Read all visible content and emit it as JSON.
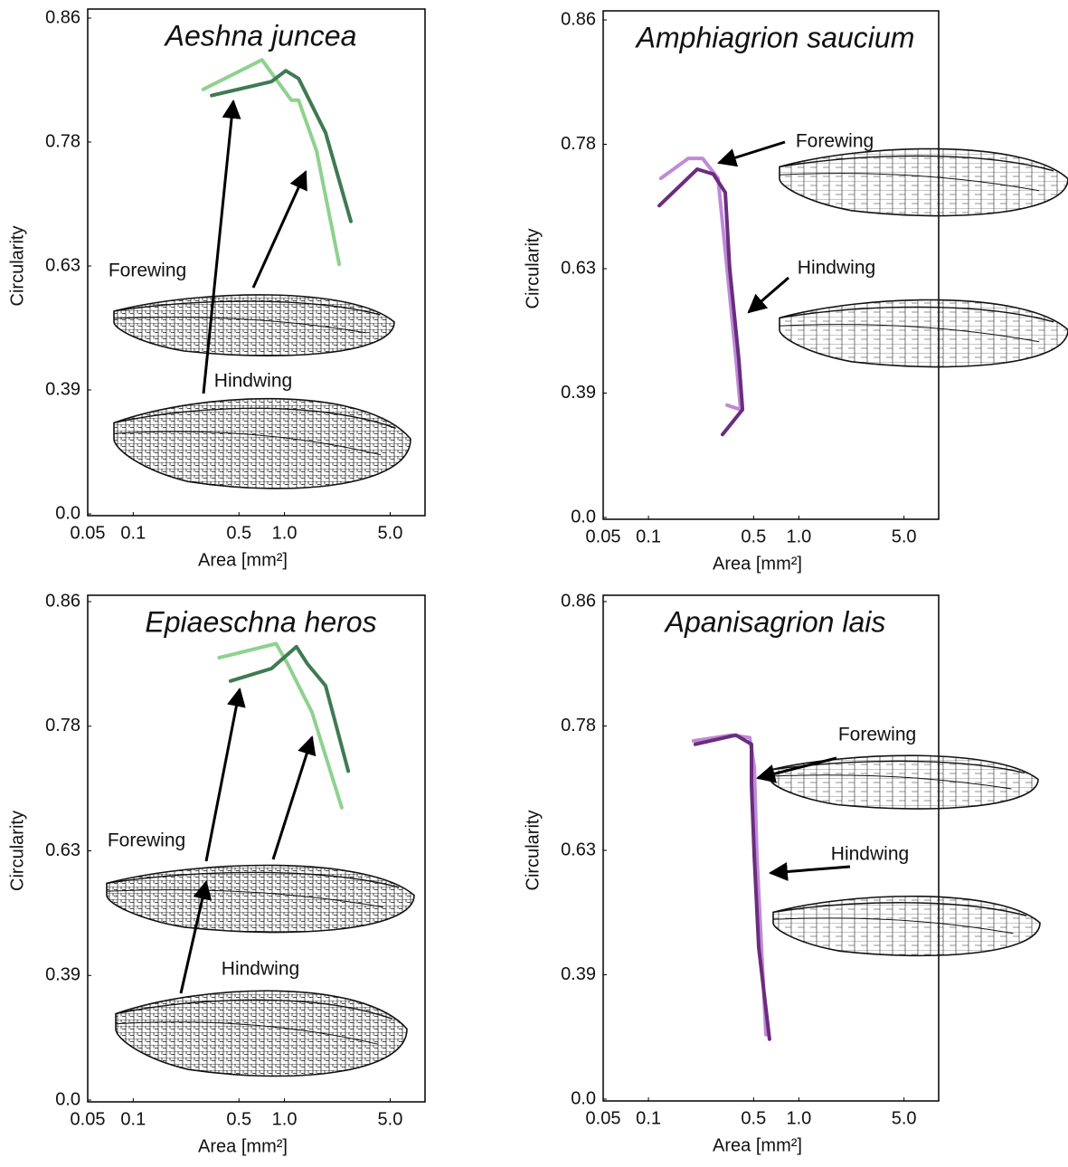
{
  "chart_data": [
    {
      "type": "line",
      "title": "Aeshna juncea",
      "x_label": "Area [mm²]",
      "y_label": "Circularity",
      "x_log": true,
      "xlim": [
        0.05,
        8.5
      ],
      "xticks": [
        0.05,
        0.1,
        0.5,
        {
          "value": 1,
          "label": "1.0"
        },
        {
          "value": 5,
          "label": "5.0"
        }
      ],
      "ylim": [
        0,
        0.86
      ],
      "yticks": [
        {
          "value": 0,
          "label": "0.0"
        },
        0.39,
        0.63,
        0.78,
        0.86
      ],
      "annotations": [
        "Forewing",
        "Hindwing"
      ],
      "series": [
        {
          "color": "#8fd18f",
          "x": [
            0.29,
            0.71,
            1.11,
            1.24,
            1.63,
            2.3
          ],
          "values": [
            0.814,
            0.833,
            0.807,
            0.807,
            0.769,
            0.632
          ]
        },
        {
          "color": "#3f7a52",
          "x": [
            0.33,
            0.82,
            1.02,
            1.24,
            1.87,
            2.75
          ],
          "values": [
            0.81,
            0.819,
            0.826,
            0.821,
            0.786,
            0.684
          ]
        }
      ]
    },
    {
      "type": "line",
      "title": "Amphiagrion saucium",
      "x_label": "Area [mm²]",
      "y_label": "Circularity",
      "x_log": true,
      "xlim": [
        0.05,
        8.5
      ],
      "xticks": [
        0.05,
        0.1,
        0.5,
        {
          "value": 1,
          "label": "1.0"
        },
        {
          "value": 5,
          "label": "5.0"
        }
      ],
      "ylim": [
        0,
        0.86
      ],
      "yticks": [
        {
          "value": 0,
          "label": "0.0"
        },
        0.39,
        0.63,
        0.78,
        0.86
      ],
      "annotations": [
        "Forewing",
        "Hindwing"
      ],
      "series": [
        {
          "color": "#c08ad8",
          "x": [
            0.121,
            0.184,
            0.229,
            0.29,
            0.333,
            0.382,
            0.41,
            0.333
          ],
          "values": [
            0.739,
            0.763,
            0.763,
            0.739,
            0.63,
            0.455,
            0.338,
            0.352
          ]
        },
        {
          "color": "#6a2d7e",
          "x": [
            0.118,
            0.211,
            0.27,
            0.324,
            0.347,
            0.399,
            0.422,
            0.311
          ],
          "values": [
            0.706,
            0.75,
            0.744,
            0.722,
            0.63,
            0.455,
            0.338,
            0.26
          ]
        }
      ]
    },
    {
      "type": "line",
      "title": "Epiaeschna heros",
      "x_label": "Area [mm²]",
      "y_label": "Circularity",
      "x_log": true,
      "xlim": [
        0.05,
        8.5
      ],
      "xticks": [
        0.05,
        0.1,
        0.5,
        {
          "value": 1,
          "label": "1.0"
        },
        {
          "value": 5,
          "label": "5.0"
        }
      ],
      "ylim": [
        0,
        0.86
      ],
      "yticks": [
        {
          "value": 0,
          "label": "0.0"
        },
        0.39,
        0.63,
        0.78,
        0.86
      ],
      "annotations": [
        "Forewing",
        "Hindwing"
      ],
      "series": [
        {
          "color": "#8fd18f",
          "x": [
            0.37,
            0.88,
            1.05,
            1.52,
            2.39
          ],
          "values": [
            0.824,
            0.833,
            0.82,
            0.789,
            0.682
          ]
        },
        {
          "color": "#3f7a52",
          "x": [
            0.44,
            0.82,
            1.2,
            1.42,
            1.87,
            2.64
          ],
          "values": [
            0.809,
            0.817,
            0.831,
            0.82,
            0.806,
            0.726
          ]
        }
      ]
    },
    {
      "type": "line",
      "title": "Apanisagrion lais",
      "x_label": "Area [mm²]",
      "y_label": "Circularity",
      "x_log": true,
      "xlim": [
        0.05,
        8.5
      ],
      "xticks": [
        0.05,
        0.1,
        0.5,
        {
          "value": 1,
          "label": "1.0"
        },
        {
          "value": 5,
          "label": "5.0"
        }
      ],
      "ylim": [
        0,
        0.86
      ],
      "yticks": [
        {
          "value": 0,
          "label": "0.0"
        },
        0.39,
        0.63,
        0.78,
        0.86
      ],
      "annotations": [
        "Forewing",
        "Hindwing"
      ],
      "series": [
        {
          "color": "#c08ad8",
          "x": [
            0.199,
            0.357,
            0.471,
            0.505,
            0.526,
            0.564,
            0.604
          ],
          "values": [
            0.762,
            0.769,
            0.766,
            0.731,
            0.618,
            0.443,
            0.202
          ]
        },
        {
          "color": "#6a2d7e",
          "x": [
            0.205,
            0.382,
            0.484,
            0.484,
            0.505,
            0.541,
            0.638
          ],
          "values": [
            0.758,
            0.769,
            0.758,
            0.709,
            0.618,
            0.443,
            0.188
          ]
        }
      ]
    }
  ]
}
